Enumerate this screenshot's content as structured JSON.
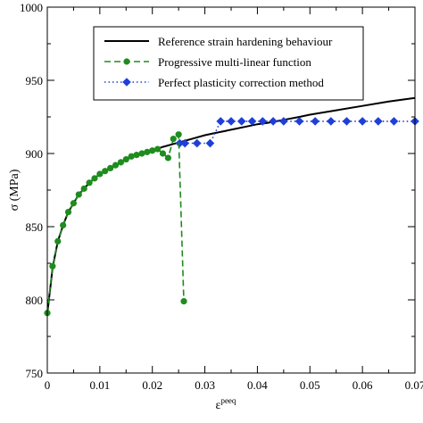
{
  "chart_data": {
    "type": "line",
    "xlabel": "ε",
    "xlabel_superscript": "peeq",
    "ylabel": "σ (MPa)",
    "xlim": [
      0,
      0.07
    ],
    "ylim": [
      750,
      1000
    ],
    "x_ticks": [
      0,
      0.01,
      0.02,
      0.03,
      0.04,
      0.05,
      0.06,
      0.07
    ],
    "x_tick_labels": [
      "0",
      "0.01",
      "0.02",
      "0.03",
      "0.04",
      "0.05",
      "0.06",
      "0.07"
    ],
    "y_ticks": [
      750,
      800,
      850,
      900,
      950,
      1000
    ],
    "y_tick_labels": [
      "750",
      "800",
      "850",
      "900",
      "950",
      "1000"
    ],
    "legend_position": "top-right",
    "series": [
      {
        "name": "Reference strain hardening behaviour",
        "color": "#000000",
        "style": "solid",
        "marker": "none",
        "x": [
          0,
          0.0003,
          0.0007,
          0.001,
          0.002,
          0.003,
          0.004,
          0.005,
          0.006,
          0.007,
          0.008,
          0.009,
          0.01,
          0.011,
          0.012,
          0.013,
          0.014,
          0.015,
          0.016,
          0.017,
          0.018,
          0.019,
          0.02,
          0.022,
          0.024,
          0.026,
          0.028,
          0.03,
          0.032,
          0.034,
          0.036,
          0.038,
          0.04,
          0.042,
          0.045,
          0.048,
          0.05,
          0.055,
          0.06,
          0.065,
          0.07
        ],
        "y": [
          790,
          800,
          812,
          822,
          840,
          851,
          860,
          866,
          872,
          876,
          880,
          883,
          886,
          888,
          890,
          892,
          894,
          896,
          897.5,
          898.5,
          900,
          901,
          902,
          904.5,
          906.5,
          908.5,
          910.5,
          912.5,
          914,
          915.5,
          917,
          918.5,
          920,
          921,
          923,
          925,
          926.5,
          929.5,
          932.5,
          935.5,
          938
        ]
      },
      {
        "name": "Progressive multi-linear function",
        "color": "#1e8c1e",
        "style": "dashed",
        "marker": "circle",
        "x": [
          0,
          0.001,
          0.002,
          0.003,
          0.004,
          0.005,
          0.006,
          0.007,
          0.008,
          0.009,
          0.01,
          0.011,
          0.012,
          0.013,
          0.014,
          0.015,
          0.016,
          0.017,
          0.018,
          0.019,
          0.02,
          0.021,
          0.022,
          0.023,
          0.024,
          0.025,
          0.026
        ],
        "y": [
          791,
          823,
          840,
          851,
          860,
          866,
          872,
          876,
          880,
          883,
          886,
          888,
          890,
          892,
          894,
          896,
          898,
          899,
          900,
          901,
          902,
          903,
          900,
          897,
          910,
          913,
          799
        ]
      },
      {
        "name": "Perfect plasticity correction method",
        "color": "#1f3fd8",
        "style": "dotted",
        "marker": "diamond",
        "x": [
          0.0252,
          0.0262,
          0.0285,
          0.031,
          0.033,
          0.035,
          0.037,
          0.039,
          0.041,
          0.043,
          0.045,
          0.048,
          0.051,
          0.054,
          0.057,
          0.06,
          0.063,
          0.066,
          0.07
        ],
        "y": [
          907,
          907,
          907,
          907,
          922,
          922,
          922,
          922,
          922,
          922,
          922,
          922,
          922,
          922,
          922,
          922,
          922,
          922,
          922
        ]
      }
    ]
  }
}
